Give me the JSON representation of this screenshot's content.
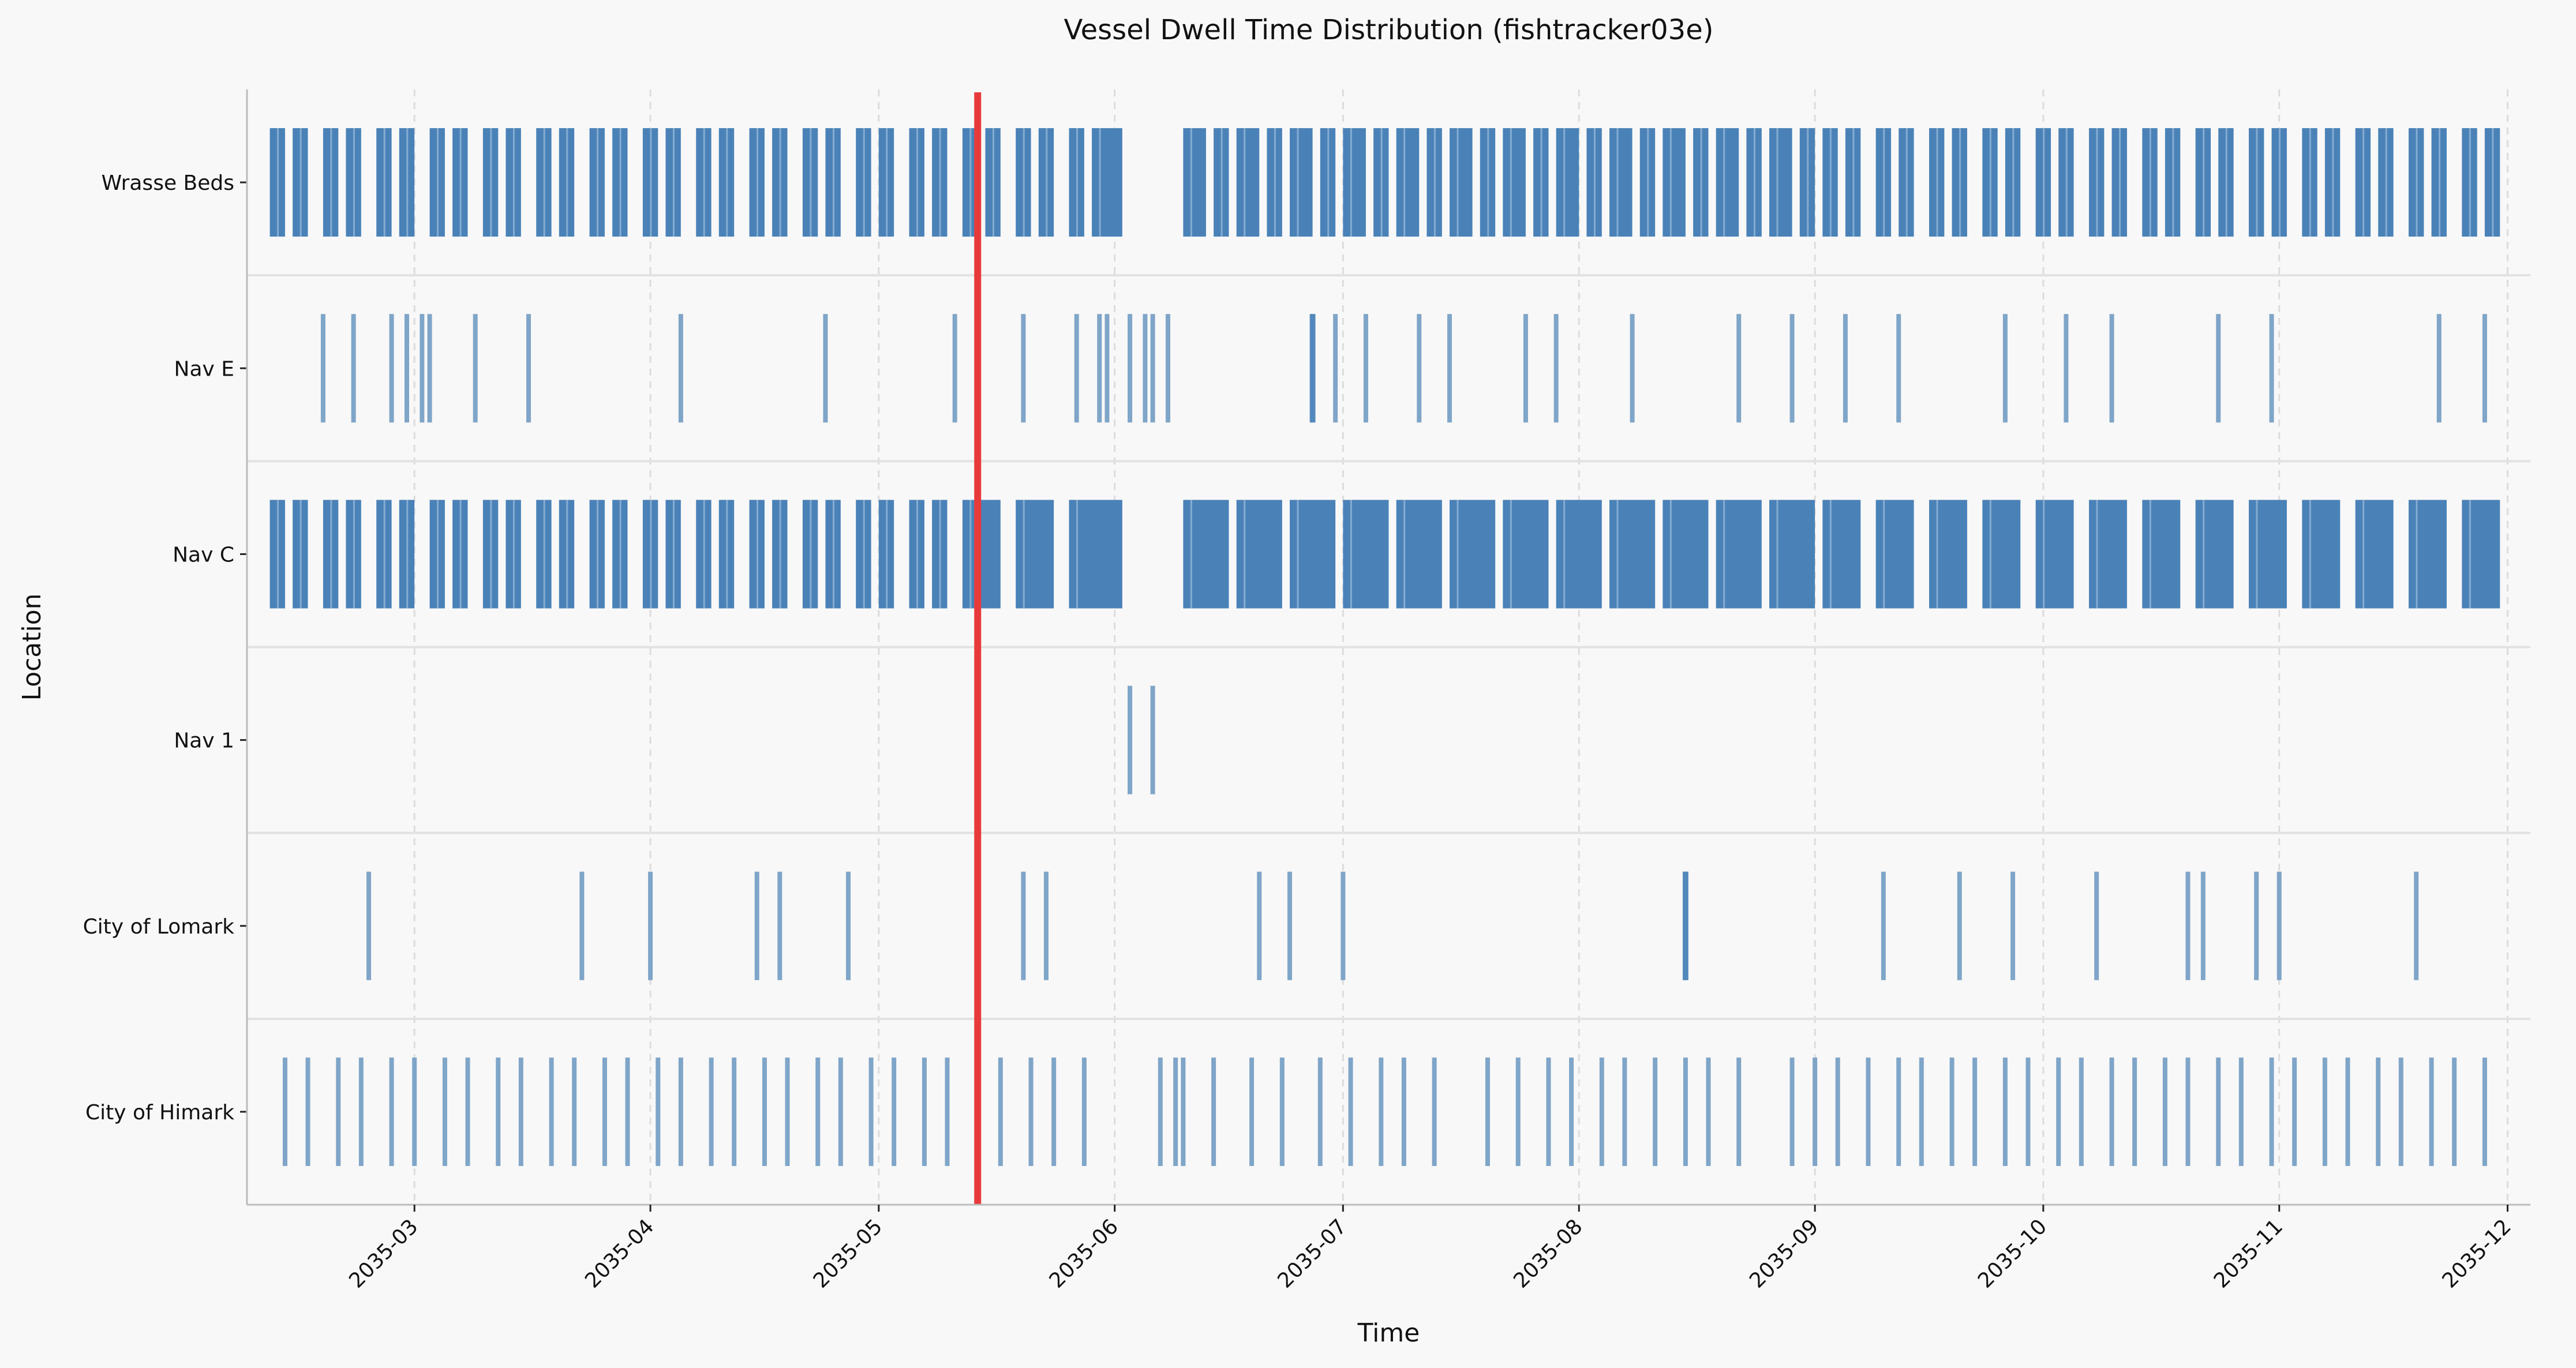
{
  "chart_data": {
    "type": "timeline",
    "title": "Vessel Dwell Time Distribution (fishtracker03e)",
    "xlabel": "Time",
    "ylabel": "Location",
    "x_range": [
      "2035-02-07",
      "2035-12-04"
    ],
    "x_ticks": [
      "2035-03",
      "2035-04",
      "2035-05",
      "2035-06",
      "2035-07",
      "2035-08",
      "2035-09",
      "2035-10",
      "2035-11",
      "2035-12"
    ],
    "grid": "vertical dashed at month ticks",
    "marker_line": {
      "date": "2035-05-14",
      "color": "#e83a3a"
    },
    "bar_color": "#4a82b8",
    "event_color": "#7fa5c8",
    "rows": [
      {
        "name": "Wrasse Beds",
        "blocks": [
          [
            "2035-02-10",
            "2035-02-12"
          ],
          [
            "2035-02-13",
            "2035-02-15"
          ],
          [
            "2035-02-17",
            "2035-02-19"
          ],
          [
            "2035-02-20",
            "2035-02-22"
          ],
          [
            "2035-02-24",
            "2035-02-26"
          ],
          [
            "2035-02-27",
            "2035-03-01"
          ],
          [
            "2035-03-03",
            "2035-03-05"
          ],
          [
            "2035-03-06",
            "2035-03-08"
          ],
          [
            "2035-03-10",
            "2035-03-12"
          ],
          [
            "2035-03-13",
            "2035-03-15"
          ],
          [
            "2035-03-17",
            "2035-03-19"
          ],
          [
            "2035-03-20",
            "2035-03-22"
          ],
          [
            "2035-03-24",
            "2035-03-26"
          ],
          [
            "2035-03-27",
            "2035-03-29"
          ],
          [
            "2035-03-31",
            "2035-04-02"
          ],
          [
            "2035-04-03",
            "2035-04-05"
          ],
          [
            "2035-04-07",
            "2035-04-09"
          ],
          [
            "2035-04-10",
            "2035-04-12"
          ],
          [
            "2035-04-14",
            "2035-04-16"
          ],
          [
            "2035-04-17",
            "2035-04-19"
          ],
          [
            "2035-04-21",
            "2035-04-23"
          ],
          [
            "2035-04-24",
            "2035-04-26"
          ],
          [
            "2035-04-28",
            "2035-04-30"
          ],
          [
            "2035-05-01",
            "2035-05-03"
          ],
          [
            "2035-05-05",
            "2035-05-07"
          ],
          [
            "2035-05-08",
            "2035-05-10"
          ],
          [
            "2035-05-12",
            "2035-05-14"
          ],
          [
            "2035-05-15",
            "2035-05-17"
          ],
          [
            "2035-05-19",
            "2035-05-21"
          ],
          [
            "2035-05-22",
            "2035-05-24"
          ],
          [
            "2035-05-26",
            "2035-05-28"
          ],
          [
            "2035-05-29",
            "2035-06-02"
          ],
          [
            "2035-06-10",
            "2035-06-13"
          ],
          [
            "2035-06-14",
            "2035-06-16"
          ],
          [
            "2035-06-17",
            "2035-06-20"
          ],
          [
            "2035-06-21",
            "2035-06-23"
          ],
          [
            "2035-06-24",
            "2035-06-27"
          ],
          [
            "2035-06-28",
            "2035-06-30"
          ],
          [
            "2035-07-01",
            "2035-07-04"
          ],
          [
            "2035-07-05",
            "2035-07-07"
          ],
          [
            "2035-07-08",
            "2035-07-11"
          ],
          [
            "2035-07-12",
            "2035-07-14"
          ],
          [
            "2035-07-15",
            "2035-07-18"
          ],
          [
            "2035-07-19",
            "2035-07-21"
          ],
          [
            "2035-07-22",
            "2035-07-25"
          ],
          [
            "2035-07-26",
            "2035-07-28"
          ],
          [
            "2035-07-29",
            "2035-08-01"
          ],
          [
            "2035-08-02",
            "2035-08-04"
          ],
          [
            "2035-08-05",
            "2035-08-08"
          ],
          [
            "2035-08-09",
            "2035-08-11"
          ],
          [
            "2035-08-12",
            "2035-08-15"
          ],
          [
            "2035-08-16",
            "2035-08-18"
          ],
          [
            "2035-08-19",
            "2035-08-22"
          ],
          [
            "2035-08-23",
            "2035-08-25"
          ],
          [
            "2035-08-26",
            "2035-08-29"
          ],
          [
            "2035-08-30",
            "2035-09-01"
          ],
          [
            "2035-09-02",
            "2035-09-04"
          ],
          [
            "2035-09-05",
            "2035-09-07"
          ],
          [
            "2035-09-09",
            "2035-09-11"
          ],
          [
            "2035-09-12",
            "2035-09-14"
          ],
          [
            "2035-09-16",
            "2035-09-18"
          ],
          [
            "2035-09-19",
            "2035-09-21"
          ],
          [
            "2035-09-23",
            "2035-09-25"
          ],
          [
            "2035-09-26",
            "2035-09-28"
          ],
          [
            "2035-09-30",
            "2035-10-02"
          ],
          [
            "2035-10-03",
            "2035-10-05"
          ],
          [
            "2035-10-07",
            "2035-10-09"
          ],
          [
            "2035-10-10",
            "2035-10-12"
          ],
          [
            "2035-10-14",
            "2035-10-16"
          ],
          [
            "2035-10-17",
            "2035-10-19"
          ],
          [
            "2035-10-21",
            "2035-10-23"
          ],
          [
            "2035-10-24",
            "2035-10-26"
          ],
          [
            "2035-10-28",
            "2035-10-30"
          ],
          [
            "2035-10-31",
            "2035-11-02"
          ],
          [
            "2035-11-04",
            "2035-11-06"
          ],
          [
            "2035-11-07",
            "2035-11-09"
          ],
          [
            "2035-11-11",
            "2035-11-13"
          ],
          [
            "2035-11-14",
            "2035-11-16"
          ],
          [
            "2035-11-18",
            "2035-11-20"
          ],
          [
            "2035-11-21",
            "2035-11-23"
          ],
          [
            "2035-11-25",
            "2035-11-27"
          ],
          [
            "2035-11-28",
            "2035-11-30"
          ]
        ],
        "events": []
      },
      {
        "name": "Nav E",
        "blocks": [],
        "events": [
          "2035-02-17",
          "2035-02-21",
          "2035-02-26",
          "2035-02-28",
          "2035-03-02",
          "2035-03-03",
          "2035-03-09",
          "2035-03-16",
          "2035-04-05",
          "2035-04-24",
          "2035-05-11",
          "2035-05-14",
          "2035-05-20",
          "2035-05-27",
          "2035-05-30",
          "2035-05-31",
          "2035-06-03",
          "2035-06-05",
          "2035-06-06",
          "2035-06-08",
          "2035-06-27",
          "2035-06-30",
          "2035-07-04",
          "2035-07-11",
          "2035-07-15",
          "2035-07-25",
          "2035-07-29",
          "2035-08-08",
          "2035-08-22",
          "2035-08-29",
          "2035-09-05",
          "2035-09-12",
          "2035-09-26",
          "2035-10-04",
          "2035-10-10",
          "2035-10-24",
          "2035-10-31",
          "2035-11-22",
          "2035-11-28"
        ],
        "heavy_events": [
          "2035-06-27"
        ]
      },
      {
        "name": "Nav C",
        "blocks": [
          [
            "2035-02-10",
            "2035-02-12"
          ],
          [
            "2035-02-13",
            "2035-02-15"
          ],
          [
            "2035-02-17",
            "2035-02-19"
          ],
          [
            "2035-02-20",
            "2035-02-22"
          ],
          [
            "2035-02-24",
            "2035-02-26"
          ],
          [
            "2035-02-27",
            "2035-03-01"
          ],
          [
            "2035-03-03",
            "2035-03-05"
          ],
          [
            "2035-03-06",
            "2035-03-08"
          ],
          [
            "2035-03-10",
            "2035-03-12"
          ],
          [
            "2035-03-13",
            "2035-03-15"
          ],
          [
            "2035-03-17",
            "2035-03-19"
          ],
          [
            "2035-03-20",
            "2035-03-22"
          ],
          [
            "2035-03-24",
            "2035-03-26"
          ],
          [
            "2035-03-27",
            "2035-03-29"
          ],
          [
            "2035-03-31",
            "2035-04-02"
          ],
          [
            "2035-04-03",
            "2035-04-05"
          ],
          [
            "2035-04-07",
            "2035-04-09"
          ],
          [
            "2035-04-10",
            "2035-04-12"
          ],
          [
            "2035-04-14",
            "2035-04-16"
          ],
          [
            "2035-04-17",
            "2035-04-19"
          ],
          [
            "2035-04-21",
            "2035-04-23"
          ],
          [
            "2035-04-24",
            "2035-04-26"
          ],
          [
            "2035-04-28",
            "2035-04-30"
          ],
          [
            "2035-05-01",
            "2035-05-03"
          ],
          [
            "2035-05-05",
            "2035-05-07"
          ],
          [
            "2035-05-08",
            "2035-05-10"
          ],
          [
            "2035-05-12",
            "2035-05-17"
          ],
          [
            "2035-05-19",
            "2035-05-24"
          ],
          [
            "2035-05-26",
            "2035-06-02"
          ],
          [
            "2035-06-10",
            "2035-06-16"
          ],
          [
            "2035-06-17",
            "2035-06-23"
          ],
          [
            "2035-06-24",
            "2035-06-30"
          ],
          [
            "2035-07-01",
            "2035-07-07"
          ],
          [
            "2035-07-08",
            "2035-07-14"
          ],
          [
            "2035-07-15",
            "2035-07-21"
          ],
          [
            "2035-07-22",
            "2035-07-28"
          ],
          [
            "2035-07-29",
            "2035-08-04"
          ],
          [
            "2035-08-05",
            "2035-08-11"
          ],
          [
            "2035-08-12",
            "2035-08-18"
          ],
          [
            "2035-08-19",
            "2035-08-25"
          ],
          [
            "2035-08-26",
            "2035-09-01"
          ],
          [
            "2035-09-02",
            "2035-09-07"
          ],
          [
            "2035-09-09",
            "2035-09-14"
          ],
          [
            "2035-09-16",
            "2035-09-21"
          ],
          [
            "2035-09-23",
            "2035-09-28"
          ],
          [
            "2035-09-30",
            "2035-10-05"
          ],
          [
            "2035-10-07",
            "2035-10-12"
          ],
          [
            "2035-10-14",
            "2035-10-19"
          ],
          [
            "2035-10-21",
            "2035-10-26"
          ],
          [
            "2035-10-28",
            "2035-11-02"
          ],
          [
            "2035-11-04",
            "2035-11-09"
          ],
          [
            "2035-11-11",
            "2035-11-16"
          ],
          [
            "2035-11-18",
            "2035-11-23"
          ],
          [
            "2035-11-25",
            "2035-11-30"
          ]
        ],
        "events": []
      },
      {
        "name": "Nav 1",
        "blocks": [],
        "events": [
          "2035-06-03",
          "2035-06-06"
        ]
      },
      {
        "name": "City of Lomark",
        "blocks": [],
        "events": [
          "2035-02-23",
          "2035-03-23",
          "2035-04-01",
          "2035-04-15",
          "2035-04-18",
          "2035-04-27",
          "2035-05-20",
          "2035-05-23",
          "2035-06-20",
          "2035-06-24",
          "2035-07-01",
          "2035-08-15",
          "2035-09-10",
          "2035-09-20",
          "2035-09-27",
          "2035-10-08",
          "2035-10-20",
          "2035-10-22",
          "2035-10-29",
          "2035-11-01",
          "2035-11-19"
        ],
        "heavy_events": [
          "2035-08-15"
        ]
      },
      {
        "name": "City of Himark",
        "blocks": [],
        "events": [
          "2035-02-12",
          "2035-02-15",
          "2035-02-19",
          "2035-02-22",
          "2035-02-26",
          "2035-03-01",
          "2035-03-05",
          "2035-03-08",
          "2035-03-12",
          "2035-03-15",
          "2035-03-19",
          "2035-03-22",
          "2035-03-26",
          "2035-03-29",
          "2035-04-02",
          "2035-04-05",
          "2035-04-09",
          "2035-04-12",
          "2035-04-16",
          "2035-04-19",
          "2035-04-23",
          "2035-04-26",
          "2035-04-30",
          "2035-05-03",
          "2035-05-07",
          "2035-05-10",
          "2035-05-14",
          "2035-05-17",
          "2035-05-21",
          "2035-05-24",
          "2035-05-28",
          "2035-06-07",
          "2035-06-09",
          "2035-06-10",
          "2035-06-14",
          "2035-06-19",
          "2035-06-23",
          "2035-06-28",
          "2035-07-02",
          "2035-07-06",
          "2035-07-09",
          "2035-07-13",
          "2035-07-20",
          "2035-07-24",
          "2035-07-28",
          "2035-07-31",
          "2035-08-04",
          "2035-08-07",
          "2035-08-11",
          "2035-08-15",
          "2035-08-18",
          "2035-08-22",
          "2035-08-29",
          "2035-09-01",
          "2035-09-04",
          "2035-09-08",
          "2035-09-12",
          "2035-09-15",
          "2035-09-19",
          "2035-09-22",
          "2035-09-26",
          "2035-09-29",
          "2035-10-03",
          "2035-10-06",
          "2035-10-10",
          "2035-10-13",
          "2035-10-17",
          "2035-10-20",
          "2035-10-24",
          "2035-10-27",
          "2035-10-31",
          "2035-11-03",
          "2035-11-07",
          "2035-11-10",
          "2035-11-14",
          "2035-11-17",
          "2035-11-21",
          "2035-11-24",
          "2035-11-28"
        ]
      }
    ]
  }
}
